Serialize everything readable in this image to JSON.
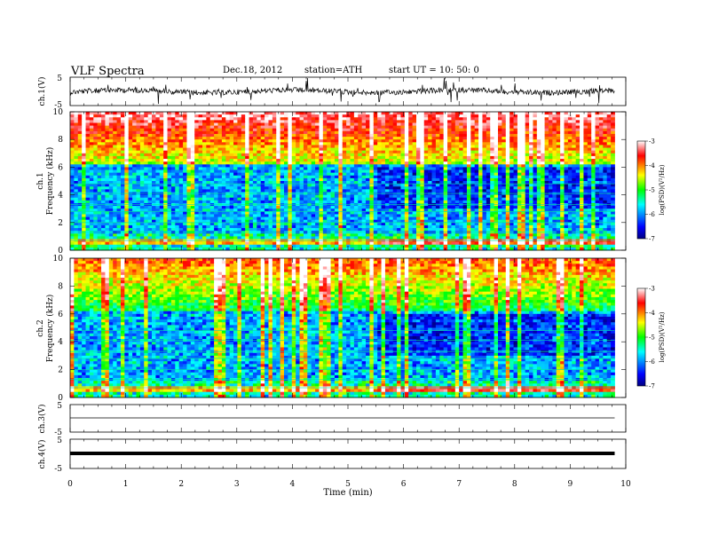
{
  "header": {
    "title": "VLF  Spectra",
    "date": "Dec.18, 2012",
    "station": "station=ATH",
    "start": "start  UT  =    10: 50: 0"
  },
  "chart_data": [
    {
      "type": "line",
      "panel": "ch1-waveform",
      "ylabel": "ch.1(V)",
      "ylim": [
        -5,
        5
      ],
      "yticks": [
        "5",
        "-5"
      ],
      "xlim": [
        0,
        10
      ],
      "data_extent_min": [
        0,
        9.8
      ],
      "color": "#000000"
    },
    {
      "type": "heatmap",
      "panel": "ch1-spectrogram",
      "ylabel_line1": "ch.1",
      "ylabel_line2": "Frequency  (kHz)",
      "ylim": [
        0,
        10
      ],
      "yticks": [
        "0",
        "2",
        "4",
        "6",
        "8",
        "10"
      ],
      "xlim": [
        0,
        10
      ],
      "data_extent_min": [
        0,
        9.8
      ],
      "colorbar": {
        "label": "log(PSD)(V²/Hz)",
        "range": [
          -7,
          -3
        ],
        "ticks": [
          "-3",
          "-4",
          "-5",
          "-6",
          "-7"
        ],
        "colors": [
          "#000080",
          "#0000ff",
          "#00ffff",
          "#00ff00",
          "#ffff00",
          "#ff0000",
          "#ffffff"
        ]
      }
    },
    {
      "type": "heatmap",
      "panel": "ch2-spectrogram",
      "ylabel_line1": "ch.2",
      "ylabel_line2": "Frequency  (kHz)",
      "ylim": [
        0,
        10
      ],
      "yticks": [
        "0",
        "2",
        "4",
        "6",
        "8",
        "10"
      ],
      "xlim": [
        0,
        10
      ],
      "data_extent_min": [
        0,
        9.8
      ],
      "colorbar": {
        "label": "log(PSD)(V²/Hz)",
        "range": [
          -7,
          -3
        ],
        "ticks": [
          "-3",
          "-4",
          "-5",
          "-6",
          "-7"
        ],
        "colors": [
          "#000080",
          "#0000ff",
          "#00ffff",
          "#00ff00",
          "#ffff00",
          "#ff0000",
          "#ffffff"
        ]
      }
    },
    {
      "type": "line",
      "panel": "ch3-waveform",
      "ylabel": "ch.3(V)",
      "ylim": [
        -5,
        5
      ],
      "yticks": [
        "5",
        "-5"
      ],
      "xlim": [
        0,
        10
      ],
      "data_extent_min": [
        0,
        9.8
      ]
    },
    {
      "type": "line",
      "panel": "ch4-waveform",
      "ylabel": "ch.4(V)",
      "ylim": [
        -5,
        5
      ],
      "yticks": [
        "5",
        "-5"
      ],
      "xlim": [
        0,
        10
      ],
      "data_extent_min": [
        0,
        9.8
      ]
    }
  ],
  "xaxis": {
    "label": "Time  (min)",
    "ticks": [
      "0",
      "1",
      "2",
      "3",
      "4",
      "5",
      "6",
      "7",
      "8",
      "9",
      "10"
    ]
  }
}
